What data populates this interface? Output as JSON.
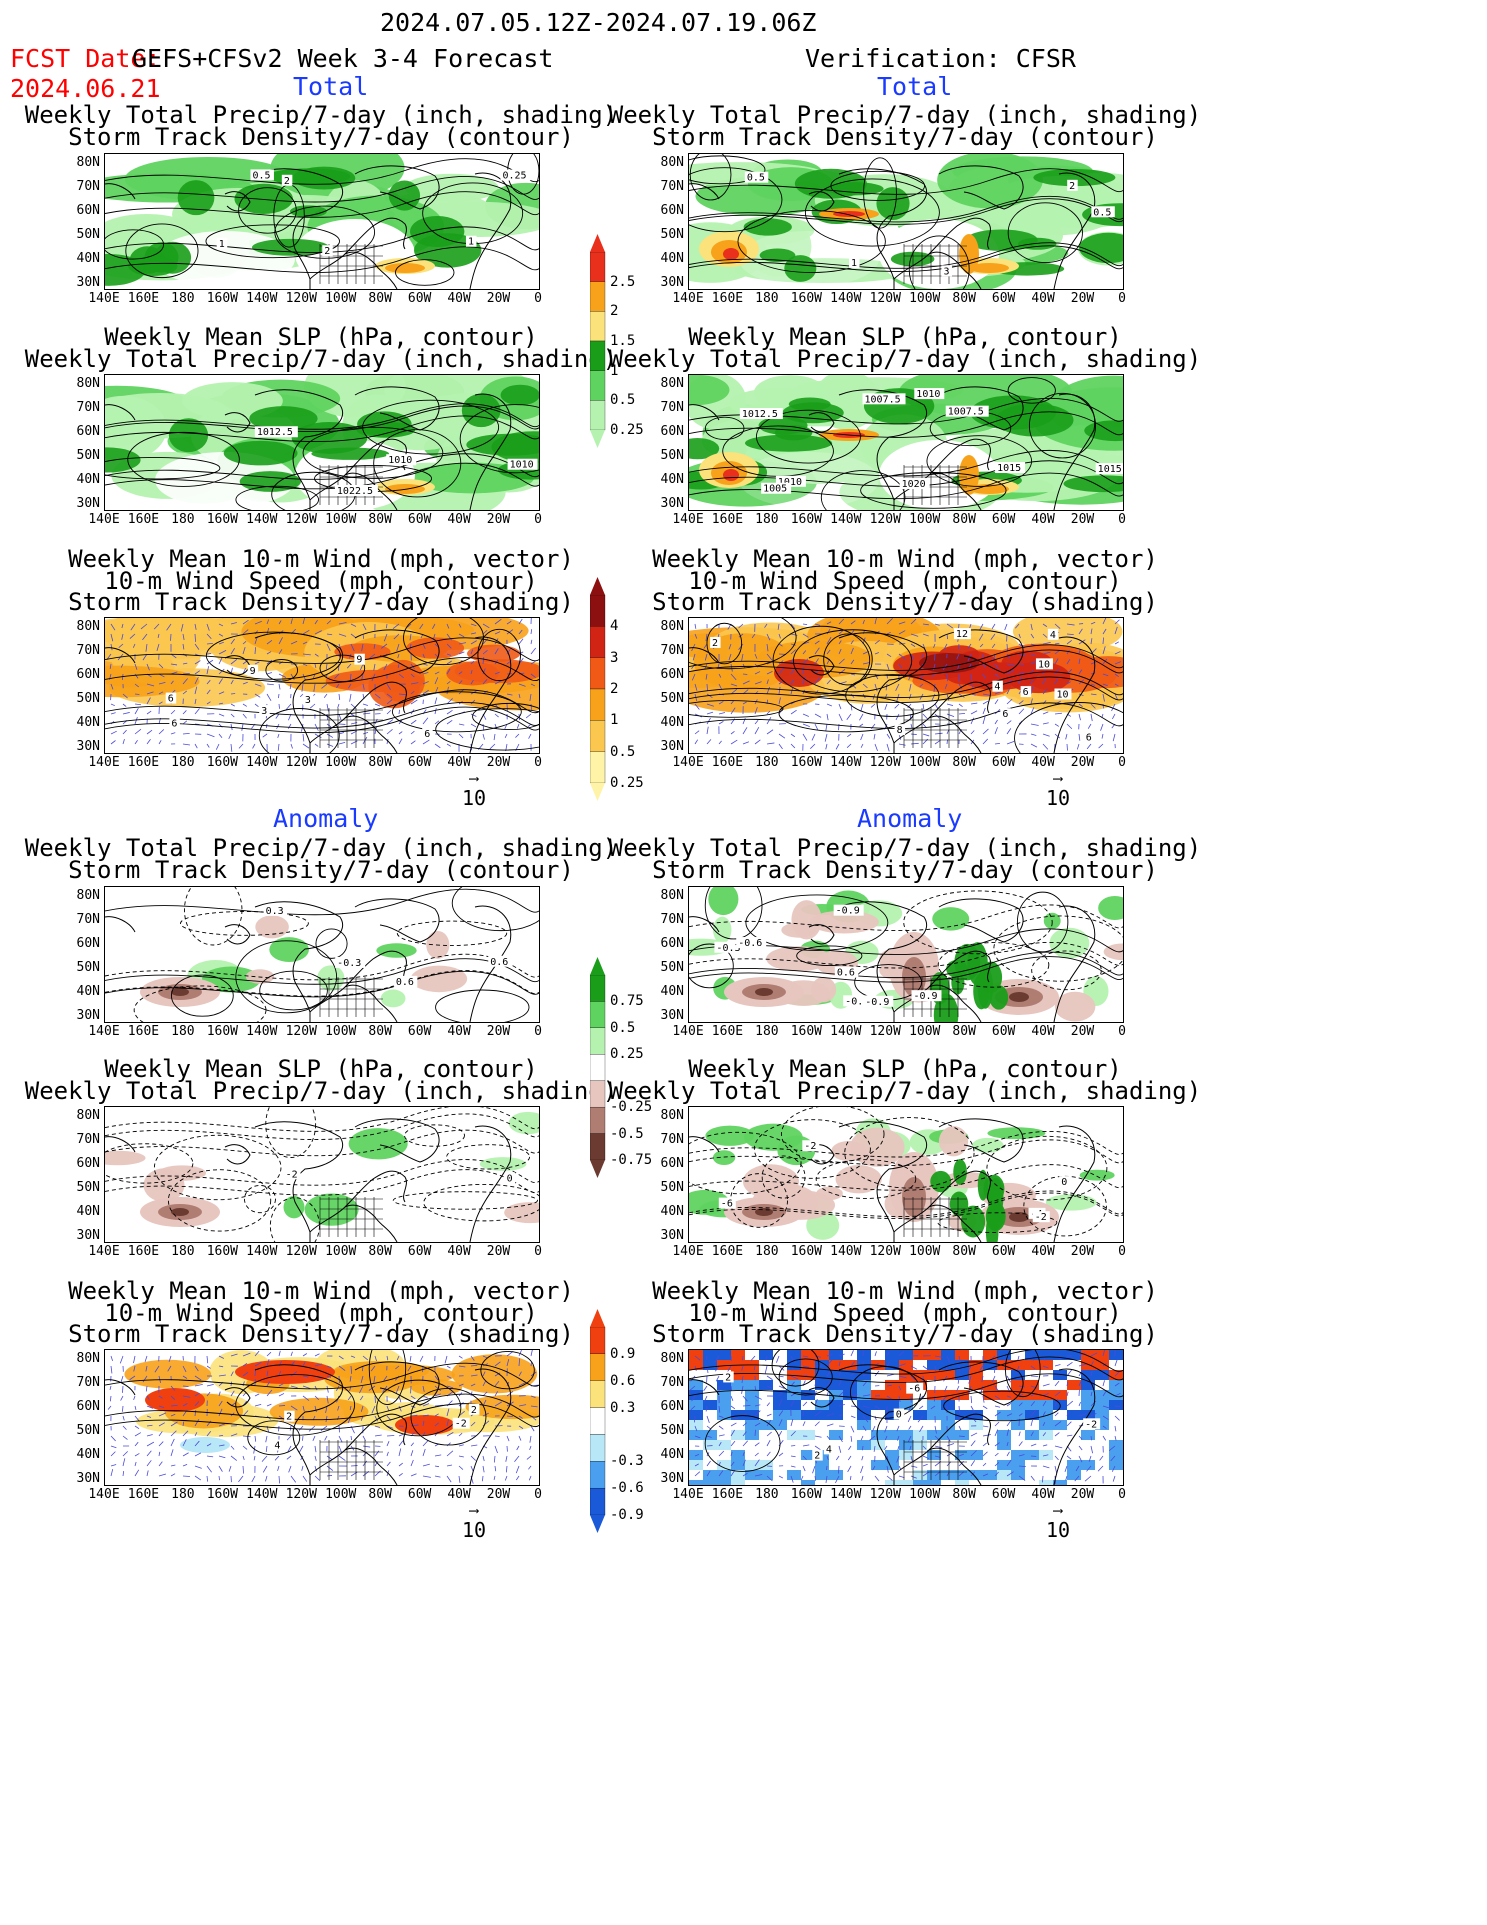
{
  "header": {
    "date_range": "2024.07.05.12Z-2024.07.19.06Z",
    "fcst_date_label": "FCST Date:",
    "fcst_date": "2024.06.21",
    "forecast_title": "GEFS+CFSv2 Week 3-4 Forecast",
    "verification_title": "Verification: CFSR"
  },
  "section_labels": {
    "total": "Total",
    "anomaly": "Anomaly"
  },
  "panel_titles": {
    "precip_storm": [
      "Weekly Total Precip/7-day (inch, shading)",
      "Storm Track Density/7-day (contour)"
    ],
    "slp_precip": [
      "Weekly Mean SLP (hPa, contour)",
      "Weekly Total Precip/7-day (inch, shading)"
    ],
    "wind": [
      "Weekly Mean 10-m Wind (mph, vector)",
      "10-m Wind Speed (mph, contour)",
      "Storm Track Density/7-day (shading)"
    ]
  },
  "axes": {
    "lat_labels": [
      "80N",
      "70N",
      "60N",
      "50N",
      "40N",
      "30N"
    ],
    "lon_labels": [
      "140E",
      "160E",
      "180",
      "160W",
      "140W",
      "120W",
      "100W",
      "80W",
      "60W",
      "40W",
      "20W",
      "0"
    ]
  },
  "vector_ref": "10",
  "colorbars": {
    "total_precip": {
      "labels": [
        "2.5",
        "2",
        "1.5",
        "1",
        "0.5",
        "0.25"
      ],
      "colors": [
        "#e8301c",
        "#f7a21a",
        "#fbe27a",
        "#1a9e1a",
        "#5fd35f",
        "#b5f2b0"
      ]
    },
    "total_storm": {
      "labels": [
        "4",
        "3",
        "2",
        "1",
        "0.5",
        "0.25"
      ],
      "colors": [
        "#8c1010",
        "#d22414",
        "#f05a16",
        "#f7a21a",
        "#fbc74f",
        "#fef3a6"
      ]
    },
    "anom_precip": {
      "labels": [
        "0.75",
        "0.5",
        "0.25",
        "-0.25",
        "-0.5",
        "-0.75"
      ],
      "colors": [
        "#1a9e1a",
        "#5fd35f",
        "#b5f2b0",
        "#ffffff",
        "#e7c6bf",
        "#b07d72",
        "#6b3b31"
      ]
    },
    "anom_storm": {
      "labels": [
        "0.9",
        "0.6",
        "0.3",
        "-0.3",
        "-0.6",
        "-0.9"
      ],
      "colors": [
        "#f0400f",
        "#f7a21a",
        "#fbe27a",
        "#ffffff",
        "#b8e8f8",
        "#4aa0ee",
        "#1a5ad8"
      ]
    }
  },
  "contour_labels": {
    "f_total_precip": [
      "2",
      "1",
      "0.5",
      "0.25",
      "1",
      "2"
    ],
    "v_total_precip": [
      "2",
      "0.5",
      "0.5",
      "3",
      "1"
    ],
    "f_total_slp": [
      "1010",
      "1010",
      "1012.5",
      "1022.5"
    ],
    "v_total_slp": [
      "1007.5",
      "1010",
      "1015",
      "1010",
      "1012.5",
      "1005",
      "1007.5",
      "1015",
      "1020"
    ],
    "f_total_wind": [
      "3",
      "6",
      "3",
      "6",
      "9",
      "9",
      "6"
    ],
    "v_total_wind": [
      "4",
      "6",
      "2",
      "6",
      "6",
      "4",
      "10",
      "12",
      "10",
      "8"
    ],
    "f_anom_precip": [
      "0.6",
      "-0.3",
      "0.3",
      "0.6"
    ],
    "v_anom_precip": [
      "-0.6",
      "-0.9",
      "-0.3",
      "0.6",
      "-0.9",
      "-0.9",
      "-0.6"
    ],
    "f_anom_slp": [
      "-2",
      "0"
    ],
    "v_anom_slp": [
      "-4",
      "-2",
      "-6",
      "0",
      "-2"
    ],
    "f_anom_wind": [
      "2",
      "2",
      "4",
      "-2"
    ],
    "v_anom_wind": [
      "4",
      "2",
      "2",
      "0",
      "-2",
      "-6"
    ]
  }
}
